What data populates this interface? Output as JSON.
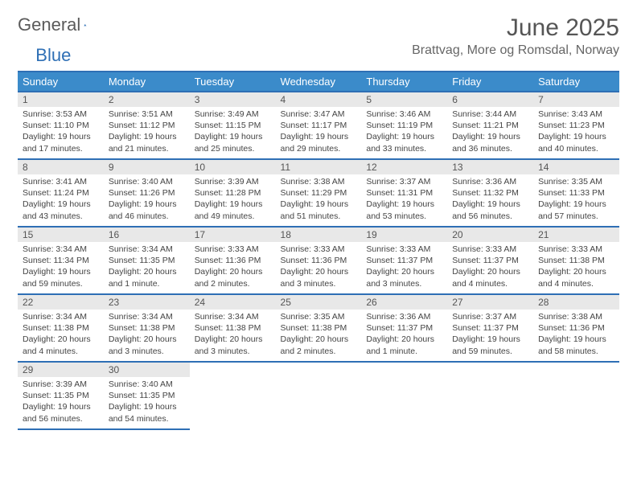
{
  "logo": {
    "text1": "General",
    "text2": "Blue"
  },
  "title": "June 2025",
  "location": "Brattvag, More og Romsdal, Norway",
  "colors": {
    "header_bg": "#3b8bca",
    "header_text": "#ffffff",
    "rule": "#2e6fb5",
    "daynum_bg": "#e8e8e8",
    "text": "#444444"
  },
  "weekdays": [
    "Sunday",
    "Monday",
    "Tuesday",
    "Wednesday",
    "Thursday",
    "Friday",
    "Saturday"
  ],
  "days": [
    {
      "n": 1,
      "sunrise": "3:53 AM",
      "sunset": "11:10 PM",
      "daylight": "19 hours and 17 minutes."
    },
    {
      "n": 2,
      "sunrise": "3:51 AM",
      "sunset": "11:12 PM",
      "daylight": "19 hours and 21 minutes."
    },
    {
      "n": 3,
      "sunrise": "3:49 AM",
      "sunset": "11:15 PM",
      "daylight": "19 hours and 25 minutes."
    },
    {
      "n": 4,
      "sunrise": "3:47 AM",
      "sunset": "11:17 PM",
      "daylight": "19 hours and 29 minutes."
    },
    {
      "n": 5,
      "sunrise": "3:46 AM",
      "sunset": "11:19 PM",
      "daylight": "19 hours and 33 minutes."
    },
    {
      "n": 6,
      "sunrise": "3:44 AM",
      "sunset": "11:21 PM",
      "daylight": "19 hours and 36 minutes."
    },
    {
      "n": 7,
      "sunrise": "3:43 AM",
      "sunset": "11:23 PM",
      "daylight": "19 hours and 40 minutes."
    },
    {
      "n": 8,
      "sunrise": "3:41 AM",
      "sunset": "11:24 PM",
      "daylight": "19 hours and 43 minutes."
    },
    {
      "n": 9,
      "sunrise": "3:40 AM",
      "sunset": "11:26 PM",
      "daylight": "19 hours and 46 minutes."
    },
    {
      "n": 10,
      "sunrise": "3:39 AM",
      "sunset": "11:28 PM",
      "daylight": "19 hours and 49 minutes."
    },
    {
      "n": 11,
      "sunrise": "3:38 AM",
      "sunset": "11:29 PM",
      "daylight": "19 hours and 51 minutes."
    },
    {
      "n": 12,
      "sunrise": "3:37 AM",
      "sunset": "11:31 PM",
      "daylight": "19 hours and 53 minutes."
    },
    {
      "n": 13,
      "sunrise": "3:36 AM",
      "sunset": "11:32 PM",
      "daylight": "19 hours and 56 minutes."
    },
    {
      "n": 14,
      "sunrise": "3:35 AM",
      "sunset": "11:33 PM",
      "daylight": "19 hours and 57 minutes."
    },
    {
      "n": 15,
      "sunrise": "3:34 AM",
      "sunset": "11:34 PM",
      "daylight": "19 hours and 59 minutes."
    },
    {
      "n": 16,
      "sunrise": "3:34 AM",
      "sunset": "11:35 PM",
      "daylight": "20 hours and 1 minute."
    },
    {
      "n": 17,
      "sunrise": "3:33 AM",
      "sunset": "11:36 PM",
      "daylight": "20 hours and 2 minutes."
    },
    {
      "n": 18,
      "sunrise": "3:33 AM",
      "sunset": "11:36 PM",
      "daylight": "20 hours and 3 minutes."
    },
    {
      "n": 19,
      "sunrise": "3:33 AM",
      "sunset": "11:37 PM",
      "daylight": "20 hours and 3 minutes."
    },
    {
      "n": 20,
      "sunrise": "3:33 AM",
      "sunset": "11:37 PM",
      "daylight": "20 hours and 4 minutes."
    },
    {
      "n": 21,
      "sunrise": "3:33 AM",
      "sunset": "11:38 PM",
      "daylight": "20 hours and 4 minutes."
    },
    {
      "n": 22,
      "sunrise": "3:34 AM",
      "sunset": "11:38 PM",
      "daylight": "20 hours and 4 minutes."
    },
    {
      "n": 23,
      "sunrise": "3:34 AM",
      "sunset": "11:38 PM",
      "daylight": "20 hours and 3 minutes."
    },
    {
      "n": 24,
      "sunrise": "3:34 AM",
      "sunset": "11:38 PM",
      "daylight": "20 hours and 3 minutes."
    },
    {
      "n": 25,
      "sunrise": "3:35 AM",
      "sunset": "11:38 PM",
      "daylight": "20 hours and 2 minutes."
    },
    {
      "n": 26,
      "sunrise": "3:36 AM",
      "sunset": "11:37 PM",
      "daylight": "20 hours and 1 minute."
    },
    {
      "n": 27,
      "sunrise": "3:37 AM",
      "sunset": "11:37 PM",
      "daylight": "19 hours and 59 minutes."
    },
    {
      "n": 28,
      "sunrise": "3:38 AM",
      "sunset": "11:36 PM",
      "daylight": "19 hours and 58 minutes."
    },
    {
      "n": 29,
      "sunrise": "3:39 AM",
      "sunset": "11:35 PM",
      "daylight": "19 hours and 56 minutes."
    },
    {
      "n": 30,
      "sunrise": "3:40 AM",
      "sunset": "11:35 PM",
      "daylight": "19 hours and 54 minutes."
    }
  ],
  "labels": {
    "sunrise": "Sunrise: ",
    "sunset": "Sunset: ",
    "daylight": "Daylight: "
  },
  "layout": {
    "start_weekday": 0,
    "rows": 5,
    "cols": 7
  }
}
